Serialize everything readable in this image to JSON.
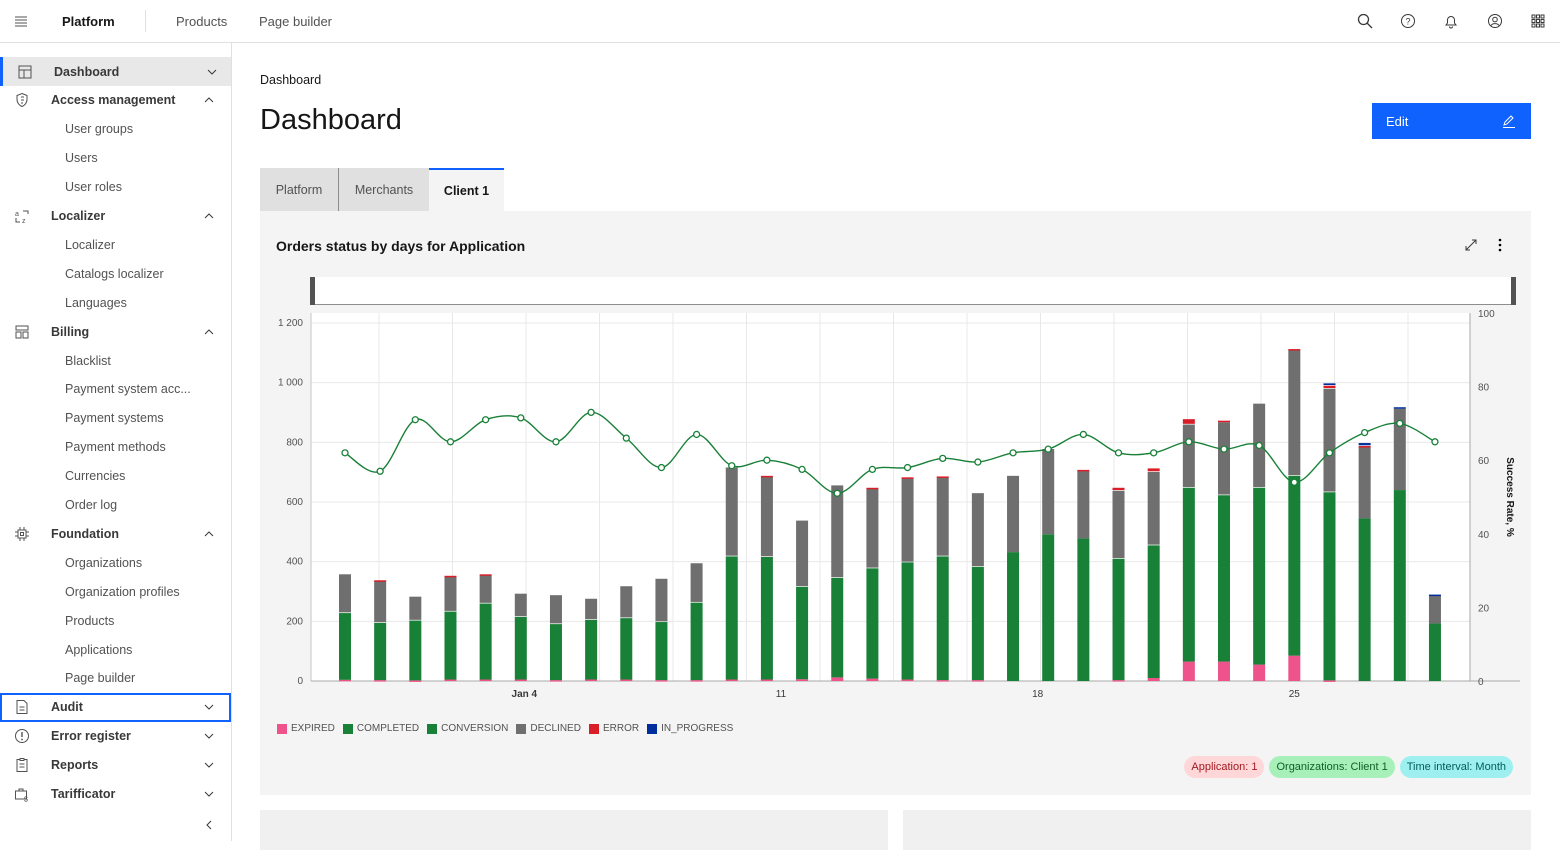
{
  "header": {
    "brand": "Platform",
    "nav": [
      "Products",
      "Page builder"
    ],
    "icons": [
      "search-icon",
      "help-icon",
      "notification-icon",
      "user-icon",
      "app-switcher-icon"
    ]
  },
  "sidebar": {
    "items": [
      {
        "label": "Dashboard",
        "type": "main",
        "icon": "dashboard-icon",
        "chevron": "down",
        "active": true
      },
      {
        "label": "Access management",
        "type": "main",
        "icon": "shield-icon",
        "chevron": "up"
      },
      {
        "label": "User groups",
        "type": "sub"
      },
      {
        "label": "Users",
        "type": "sub"
      },
      {
        "label": "User roles",
        "type": "sub"
      },
      {
        "label": "Localizer",
        "type": "main",
        "icon": "translate-icon",
        "chevron": "up"
      },
      {
        "label": "Localizer",
        "type": "sub"
      },
      {
        "label": "Catalogs localizer",
        "type": "sub"
      },
      {
        "label": "Languages",
        "type": "sub"
      },
      {
        "label": "Billing",
        "type": "main",
        "icon": "billing-icon",
        "chevron": "up"
      },
      {
        "label": "Blacklist",
        "type": "sub"
      },
      {
        "label": "Payment system acc...",
        "type": "sub"
      },
      {
        "label": "Payment systems",
        "type": "sub"
      },
      {
        "label": "Payment methods",
        "type": "sub"
      },
      {
        "label": "Currencies",
        "type": "sub"
      },
      {
        "label": "Order log",
        "type": "sub"
      },
      {
        "label": "Foundation",
        "type": "main",
        "icon": "chip-icon",
        "chevron": "up"
      },
      {
        "label": "Organizations",
        "type": "sub"
      },
      {
        "label": "Organization profiles",
        "type": "sub"
      },
      {
        "label": "Products",
        "type": "sub"
      },
      {
        "label": "Applications",
        "type": "sub"
      },
      {
        "label": "Page builder",
        "type": "sub"
      },
      {
        "label": "Audit",
        "type": "main",
        "icon": "document-icon",
        "chevron": "down",
        "focused": true
      },
      {
        "label": "Error register",
        "type": "main",
        "icon": "warning-icon",
        "chevron": "down"
      },
      {
        "label": "Reports",
        "type": "main",
        "icon": "report-icon",
        "chevron": "down"
      },
      {
        "label": "Tarifficator",
        "type": "main",
        "icon": "tariff-icon",
        "chevron": "down"
      }
    ]
  },
  "page": {
    "breadcrumb": "Dashboard",
    "title": "Dashboard",
    "edit_label": "Edit",
    "tabs": [
      {
        "label": "Platform"
      },
      {
        "label": "Merchants"
      },
      {
        "label": "Client 1",
        "selected": true
      }
    ]
  },
  "widget": {
    "title": "Orders status by days for Application",
    "tags": [
      {
        "label": "Application: 1",
        "bg": "#ffd7d9",
        "fg": "#a2191f"
      },
      {
        "label": "Organizations: Client 1",
        "bg": "#a7f0ba",
        "fg": "#0e6027"
      },
      {
        "label": "Time interval: Month",
        "bg": "#9ef0f0",
        "fg": "#005d5d"
      }
    ]
  },
  "chart_data": {
    "type": "bar",
    "title": "Orders status by days for Application",
    "ylabel": "",
    "y2label": "Success Rate, %",
    "ylim": [
      0,
      1230
    ],
    "y2lim": [
      0,
      100
    ],
    "yticks": [
      {
        "v": 0,
        "label": "0"
      },
      {
        "v": 200,
        "label": "200"
      },
      {
        "v": 400,
        "label": "400"
      },
      {
        "v": 600,
        "label": "600"
      },
      {
        "v": 800,
        "label": "800"
      },
      {
        "v": 1000,
        "label": "1 000"
      },
      {
        "v": 1200,
        "label": "1 200"
      }
    ],
    "y2ticks": [
      0,
      20,
      40,
      60,
      80,
      100
    ],
    "xticks": [
      {
        "at_index": 5.1,
        "label": "Jan 4",
        "bold": true
      },
      {
        "at_index": 12.4,
        "label": "11"
      },
      {
        "at_index": 19.7,
        "label": "18"
      },
      {
        "at_index": 27.0,
        "label": "25"
      }
    ],
    "n": 32,
    "legend": [
      {
        "name": "EXPIRED",
        "color": "#ee538b"
      },
      {
        "name": "COMPLETED",
        "color": "#198038"
      },
      {
        "name": "CONVERSION",
        "color": "#198038"
      },
      {
        "name": "DECLINED",
        "color": "#6f6f6f"
      },
      {
        "name": "ERROR",
        "color": "#da1e28"
      },
      {
        "name": "IN_PROGRESS",
        "color": "#002d9c"
      }
    ],
    "series": [
      {
        "name": "EXPIRED",
        "color": "#ee538b",
        "values": [
          4,
          3,
          2,
          5,
          5,
          5,
          3,
          5,
          5,
          3,
          3,
          5,
          5,
          6,
          12,
          8,
          5,
          3,
          3,
          0,
          0,
          0,
          3,
          10,
          65,
          65,
          55,
          85,
          2,
          0,
          0,
          0
        ]
      },
      {
        "name": "COMPLETED",
        "color": "#198038",
        "values": [
          226,
          194,
          203,
          230,
          257,
          212,
          190,
          202,
          208,
          197,
          262,
          415,
          413,
          312,
          336,
          372,
          395,
          417,
          382,
          432,
          492,
          478,
          409,
          447,
          585,
          560,
          595,
          605,
          633,
          545,
          640,
          193
        ]
      },
      {
        "name": "DECLINED",
        "color": "#6f6f6f",
        "values": [
          130,
          139,
          80,
          116,
          94,
          78,
          97,
          71,
          107,
          145,
          132,
          298,
          268,
          222,
          310,
          266,
          281,
          264,
          247,
          258,
          288,
          230,
          228,
          246,
          212,
          245,
          282,
          421,
          347,
          242,
          275,
          95
        ]
      },
      {
        "name": "ERROR",
        "color": "#da1e28",
        "values": [
          0,
          4,
          0,
          4,
          4,
          0,
          0,
          0,
          0,
          0,
          0,
          0,
          4,
          0,
          0,
          4,
          4,
          4,
          0,
          0,
          0,
          2,
          10,
          12,
          18,
          5,
          0,
          4,
          10,
          3,
          0,
          0
        ]
      },
      {
        "name": "IN_PROGRESS",
        "color": "#002d9c",
        "values": [
          0,
          0,
          0,
          0,
          0,
          0,
          0,
          0,
          0,
          0,
          0,
          0,
          0,
          0,
          0,
          0,
          0,
          0,
          0,
          0,
          0,
          0,
          0,
          0,
          0,
          0,
          0,
          0,
          8,
          10,
          5,
          4
        ]
      }
    ],
    "line": {
      "name": "CONVERSION",
      "axis": "right",
      "color": "#198038",
      "values": [
        62,
        57,
        71,
        65,
        71,
        71.5,
        65,
        73,
        66,
        58,
        67,
        58.5,
        60,
        57.5,
        51,
        57.5,
        58,
        60.5,
        59.5,
        62,
        63,
        67,
        62,
        62,
        65,
        63,
        64,
        54,
        62,
        67.5,
        70,
        65
      ]
    }
  }
}
